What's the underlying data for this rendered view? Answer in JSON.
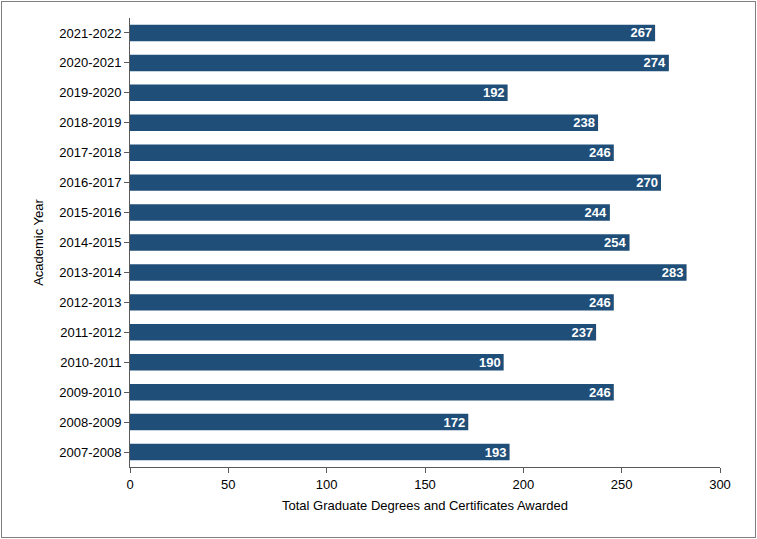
{
  "chart_data": {
    "type": "bar",
    "orientation": "horizontal",
    "x_label": "Total Graduate Degrees and Certificates Awarded",
    "y_label": "Academic Year",
    "categories": [
      "2007-2008",
      "2008-2009",
      "2009-2010",
      "2010-2011",
      "2011-2012",
      "2012-2013",
      "2013-2014",
      "2014-2015",
      "2015-2016",
      "2016-2017",
      "2017-2018",
      "2018-2019",
      "2019-2020",
      "2020-2021",
      "2021-2022"
    ],
    "values": [
      193,
      172,
      246,
      190,
      237,
      246,
      283,
      254,
      244,
      270,
      246,
      238,
      192,
      274,
      267
    ],
    "color": "#1f4e79",
    "xlim": [
      0,
      300
    ],
    "xticks": [
      0,
      50,
      100,
      150,
      200,
      250,
      300
    ],
    "grid": false,
    "data_labels": true
  }
}
